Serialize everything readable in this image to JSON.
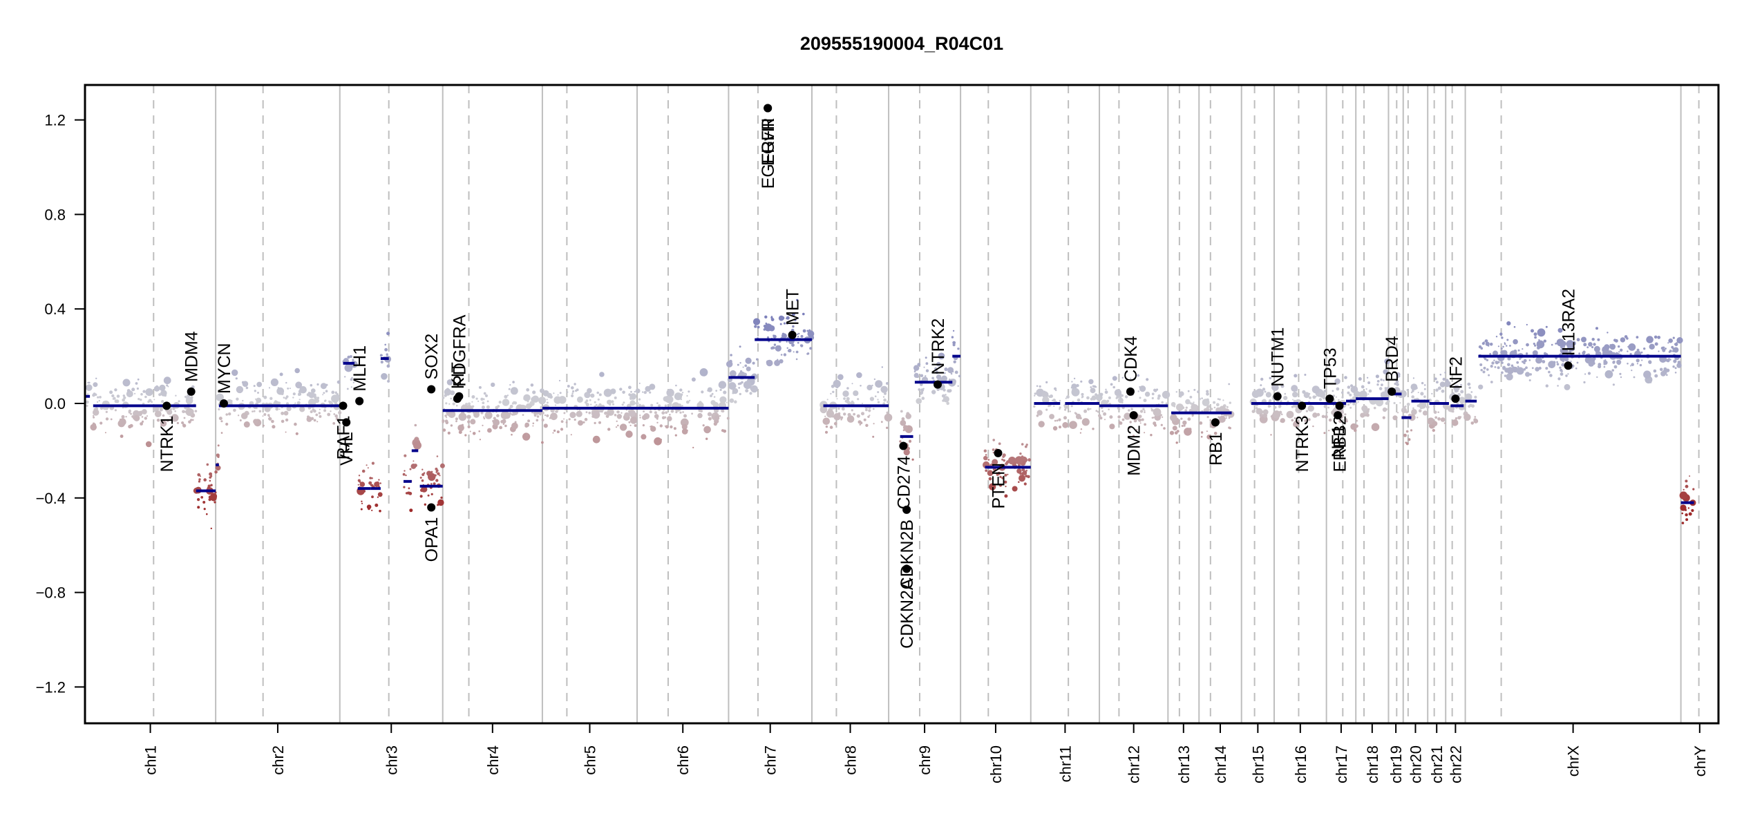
{
  "chart_data": {
    "type": "scatter",
    "title": "209555190004_R04C01",
    "xlabel": "",
    "ylabel": "",
    "ylim": [
      -1.35,
      1.35
    ],
    "yticks": [
      -1.2,
      -0.8,
      -0.4,
      0.0,
      0.4,
      0.8,
      1.2
    ],
    "ytick_labels": [
      "-1.2",
      "-0.8",
      "-0.4",
      "0.0",
      "0.4",
      "0.8",
      "1.2"
    ],
    "grid": false,
    "legend": "none",
    "colors": {
      "segment": "#00008B",
      "gain": "#6A6FB5",
      "neutral": "#CFCFD4",
      "loss": "#9E2A2A",
      "gene_marker": "#000000",
      "chr_boundary": "#BEBEBE",
      "centromere": "#BEBEBE"
    },
    "chromosomes": [
      {
        "name": "chr1",
        "start": 0.0,
        "centromere": 0.042,
        "end": 0.08,
        "level": -0.01
      },
      {
        "name": "chr2",
        "start": 0.08,
        "centromere": 0.109,
        "end": 0.156,
        "level": -0.02
      },
      {
        "name": "chr3",
        "start": 0.156,
        "centromere": 0.186,
        "end": 0.219,
        "level": 0.17
      },
      {
        "name": "chr4",
        "start": 0.219,
        "centromere": 0.235,
        "end": 0.28,
        "level": -0.03
      },
      {
        "name": "chr5",
        "start": 0.28,
        "centromere": 0.295,
        "end": 0.338,
        "level": -0.02
      },
      {
        "name": "chr6",
        "start": 0.338,
        "centromere": 0.357,
        "end": 0.394,
        "level": -0.02
      },
      {
        "name": "chr7",
        "start": 0.394,
        "centromere": 0.412,
        "end": 0.445,
        "level": 0.27
      },
      {
        "name": "chr8",
        "start": 0.445,
        "centromere": 0.46,
        "end": 0.492,
        "level": -0.01
      },
      {
        "name": "chr9",
        "start": 0.492,
        "centromere": 0.511,
        "end": 0.536,
        "level": 0.09
      },
      {
        "name": "chr10",
        "start": 0.536,
        "centromere": 0.553,
        "end": 0.579,
        "level": -0.27
      },
      {
        "name": "chr11",
        "start": 0.579,
        "centromere": 0.602,
        "end": 0.621,
        "level": 0.0
      },
      {
        "name": "chr12",
        "start": 0.621,
        "centromere": 0.633,
        "end": 0.663,
        "level": -0.01
      },
      {
        "name": "chr13",
        "start": 0.663,
        "centromere": 0.67,
        "end": 0.682,
        "level": -0.05
      },
      {
        "name": "chr14",
        "start": 0.682,
        "centromere": 0.689,
        "end": 0.708,
        "level": 0.0
      },
      {
        "name": "chr15",
        "start": 0.708,
        "centromere": 0.716,
        "end": 0.728,
        "level": 0.0
      },
      {
        "name": "chr16",
        "start": 0.728,
        "centromere": 0.743,
        "end": 0.76,
        "level": 0.01
      },
      {
        "name": "chr17",
        "start": 0.76,
        "centromere": 0.77,
        "end": 0.778,
        "level": 0.01
      },
      {
        "name": "chr18",
        "start": 0.778,
        "centromere": 0.783,
        "end": 0.798,
        "level": -0.07
      },
      {
        "name": "chr19",
        "start": 0.798,
        "centromere": 0.803,
        "end": 0.807,
        "level": 0.01
      },
      {
        "name": "chr20",
        "start": 0.807,
        "centromere": 0.81,
        "end": 0.822,
        "level": 0.0
      },
      {
        "name": "chr21",
        "start": 0.822,
        "centromere": 0.826,
        "end": 0.833,
        "level": -0.01
      },
      {
        "name": "chr22",
        "start": 0.833,
        "centromere": 0.837,
        "end": 0.845,
        "level": 0.01
      },
      {
        "name": "chrX",
        "start": 0.845,
        "centromere": 0.867,
        "end": 0.977,
        "level": 0.2
      },
      {
        "name": "chrY",
        "start": 0.977,
        "centromere": 0.988,
        "end": 1.0,
        "level": -0.42
      }
    ],
    "segments": [
      {
        "x0": 0.0,
        "x1": 0.003,
        "y": 0.03
      },
      {
        "x0": 0.005,
        "x1": 0.068,
        "y": -0.01
      },
      {
        "x0": 0.068,
        "x1": 0.08,
        "y": -0.37
      },
      {
        "x0": 0.08,
        "x1": 0.082,
        "y": -0.26
      },
      {
        "x0": 0.082,
        "x1": 0.086,
        "y": -0.01
      },
      {
        "x0": 0.086,
        "x1": 0.156,
        "y": -0.01
      },
      {
        "x0": 0.158,
        "x1": 0.165,
        "y": 0.17
      },
      {
        "x0": 0.167,
        "x1": 0.175,
        "y": -0.36
      },
      {
        "x0": 0.175,
        "x1": 0.181,
        "y": -0.36
      },
      {
        "x0": 0.181,
        "x1": 0.186,
        "y": 0.19
      },
      {
        "x0": 0.195,
        "x1": 0.2,
        "y": -0.33
      },
      {
        "x0": 0.2,
        "x1": 0.204,
        "y": -0.2
      },
      {
        "x0": 0.205,
        "x1": 0.219,
        "y": -0.35
      },
      {
        "x0": 0.219,
        "x1": 0.28,
        "y": -0.03
      },
      {
        "x0": 0.28,
        "x1": 0.338,
        "y": -0.02
      },
      {
        "x0": 0.338,
        "x1": 0.394,
        "y": -0.02
      },
      {
        "x0": 0.394,
        "x1": 0.41,
        "y": 0.11
      },
      {
        "x0": 0.41,
        "x1": 0.445,
        "y": 0.27
      },
      {
        "x0": 0.452,
        "x1": 0.492,
        "y": -0.01
      },
      {
        "x0": 0.499,
        "x1": 0.507,
        "y": -0.14
      },
      {
        "x0": 0.508,
        "x1": 0.531,
        "y": 0.09
      },
      {
        "x0": 0.531,
        "x1": 0.536,
        "y": 0.2
      },
      {
        "x0": 0.551,
        "x1": 0.579,
        "y": -0.27
      },
      {
        "x0": 0.581,
        "x1": 0.597,
        "y": 0.0
      },
      {
        "x0": 0.6,
        "x1": 0.621,
        "y": 0.0
      },
      {
        "x0": 0.621,
        "x1": 0.663,
        "y": -0.01
      },
      {
        "x0": 0.665,
        "x1": 0.702,
        "y": -0.04
      },
      {
        "x0": 0.714,
        "x1": 0.743,
        "y": 0.0
      },
      {
        "x0": 0.746,
        "x1": 0.772,
        "y": 0.0
      },
      {
        "x0": 0.772,
        "x1": 0.778,
        "y": 0.01
      },
      {
        "x0": 0.778,
        "x1": 0.798,
        "y": 0.02
      },
      {
        "x0": 0.8,
        "x1": 0.806,
        "y": 0.04
      },
      {
        "x0": 0.806,
        "x1": 0.812,
        "y": -0.06
      },
      {
        "x0": 0.812,
        "x1": 0.823,
        "y": 0.01
      },
      {
        "x0": 0.823,
        "x1": 0.835,
        "y": 0.0
      },
      {
        "x0": 0.836,
        "x1": 0.844,
        "y": -0.01
      },
      {
        "x0": 0.845,
        "x1": 0.852,
        "y": 0.01
      },
      {
        "x0": 0.853,
        "x1": 0.977,
        "y": 0.2
      },
      {
        "x0": 0.977,
        "x1": 0.985,
        "y": -0.42
      }
    ],
    "genes": [
      {
        "name": "NTRK1",
        "x": 0.05,
        "y": -0.01,
        "label_side": "below"
      },
      {
        "name": "MDM4",
        "x": 0.065,
        "y": 0.05,
        "label_side": "above"
      },
      {
        "name": "MYCN",
        "x": 0.085,
        "y": 0.0,
        "label_side": "above"
      },
      {
        "name": "RAF1",
        "x": 0.158,
        "y": -0.01,
        "label_side": "below"
      },
      {
        "name": "VHL",
        "x": 0.16,
        "y": -0.08,
        "label_side": "below"
      },
      {
        "name": "MLH1",
        "x": 0.168,
        "y": 0.01,
        "label_side": "above"
      },
      {
        "name": "SOX2",
        "x": 0.212,
        "y": 0.06,
        "label_side": "above"
      },
      {
        "name": "OPA1",
        "x": 0.212,
        "y": -0.44,
        "label_side": "below"
      },
      {
        "name": "KIT",
        "x": 0.228,
        "y": 0.02,
        "label_side": "above"
      },
      {
        "name": "PDGFRA",
        "x": 0.229,
        "y": 0.03,
        "label_side": "above"
      },
      {
        "name": "EGFR",
        "x": 0.418,
        "y": 1.25,
        "label_side": "below"
      },
      {
        "name": "EGFRvIII",
        "x": 0.418,
        "y": 1.25,
        "label_side": "below"
      },
      {
        "name": "MET",
        "x": 0.433,
        "y": 0.29,
        "label_side": "above"
      },
      {
        "name": "CD274",
        "x": 0.501,
        "y": -0.18,
        "label_side": "below"
      },
      {
        "name": "CDKN2B",
        "x": 0.503,
        "y": -0.45,
        "label_side": "below"
      },
      {
        "name": "CDKN2A",
        "x": 0.503,
        "y": -0.7,
        "label_side": "below"
      },
      {
        "name": "NTRK2",
        "x": 0.522,
        "y": 0.08,
        "label_side": "above"
      },
      {
        "name": "PTEN",
        "x": 0.559,
        "y": -0.21,
        "label_side": "below"
      },
      {
        "name": "CDK4",
        "x": 0.64,
        "y": 0.05,
        "label_side": "above"
      },
      {
        "name": "MDM2",
        "x": 0.642,
        "y": -0.05,
        "label_side": "below"
      },
      {
        "name": "RB1",
        "x": 0.692,
        "y": -0.08,
        "label_side": "below"
      },
      {
        "name": "NUTM1",
        "x": 0.73,
        "y": 0.03,
        "label_side": "above"
      },
      {
        "name": "NTRK3",
        "x": 0.745,
        "y": -0.01,
        "label_side": "below"
      },
      {
        "name": "TP53",
        "x": 0.762,
        "y": 0.02,
        "label_side": "above"
      },
      {
        "name": "NF1",
        "x": 0.767,
        "y": -0.05,
        "label_side": "below"
      },
      {
        "name": "ERBB2",
        "x": 0.768,
        "y": -0.01,
        "label_side": "below"
      },
      {
        "name": "BRD4",
        "x": 0.8,
        "y": 0.05,
        "label_side": "above"
      },
      {
        "name": "NF2",
        "x": 0.839,
        "y": 0.02,
        "label_side": "above"
      },
      {
        "name": "IL13RA2",
        "x": 0.908,
        "y": 0.16,
        "label_side": "above"
      }
    ]
  }
}
